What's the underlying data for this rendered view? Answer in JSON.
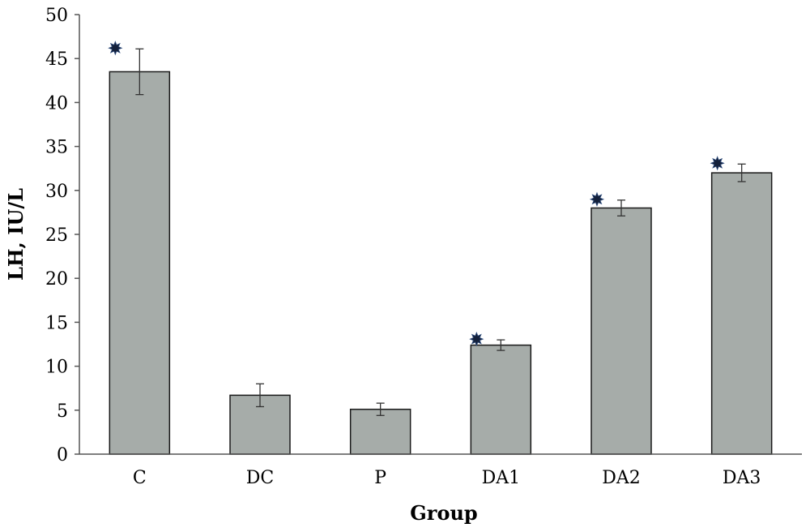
{
  "chart_data": {
    "type": "bar",
    "categories": [
      "C",
      "DC",
      "P",
      "DA1",
      "DA2",
      "DA3"
    ],
    "values": [
      43.5,
      6.7,
      5.1,
      12.4,
      28.0,
      32.0
    ],
    "error": [
      2.6,
      1.3,
      0.7,
      0.6,
      0.9,
      1.0
    ],
    "significant": [
      true,
      false,
      false,
      true,
      true,
      true
    ],
    "xlabel": "Group",
    "ylabel": "LH, IU/L",
    "ylim": [
      0,
      50
    ],
    "yticks": [
      "0",
      "5",
      "10",
      "15",
      "20",
      "25",
      "30",
      "35",
      "40",
      "45",
      "50"
    ],
    "ytick_step": 5,
    "grid": false,
    "legend": "none",
    "significance_marker": "star-icon",
    "colors": {
      "bar_fill": "#a6aca9",
      "bar_stroke": "#1a1a1a",
      "axis": "#555555",
      "marker": "#14203a"
    }
  }
}
